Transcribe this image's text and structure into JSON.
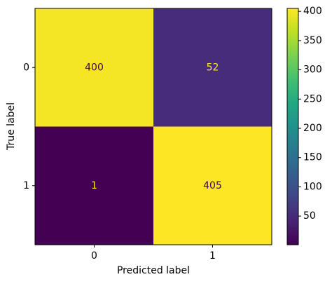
{
  "chart_data": {
    "type": "heatmap",
    "x_categories": [
      "0",
      "1"
    ],
    "y_categories": [
      "0",
      "1"
    ],
    "values": [
      [
        400,
        52
      ],
      [
        1,
        405
      ]
    ],
    "xlabel": "Predicted label",
    "ylabel": "True label",
    "colormap": "viridis",
    "colorbar": {
      "lim": [
        1,
        405
      ],
      "ticks": [
        50,
        100,
        150,
        200,
        250,
        300,
        350,
        400
      ]
    }
  }
}
